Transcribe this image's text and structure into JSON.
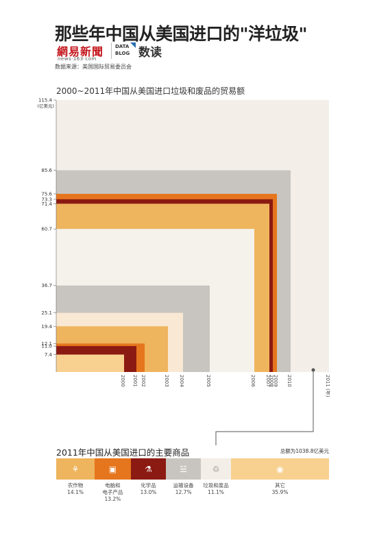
{
  "title": "那些年中国从美国进口的\"洋垃圾\"",
  "logos": {
    "news_name": "網易新聞",
    "news_url": "news·163·com",
    "blog_line1": "DATA",
    "blog_line2": "BLOG",
    "blog_name": "数读"
  },
  "source": "数据来源：美国国际贸易委员会",
  "chart_data": {
    "type": "area",
    "title": "2000~2011年中国从美国进口垃圾和废品的贸易额",
    "ylabel": "(亿美元)",
    "ytick_labels": [
      "115.4",
      "85.6",
      "75.6",
      "73.3",
      "71.4",
      "60.7",
      "36.7",
      "25.1",
      "19.4",
      "12.1",
      "11.0",
      "7.4"
    ],
    "x": [
      "2000",
      "2001",
      "2002",
      "2003",
      "2004",
      "2005",
      "2006",
      "2007",
      "2008",
      "2009",
      "2010",
      "2011 (年)"
    ],
    "values": [
      7.4,
      11.0,
      12.1,
      19.4,
      25.1,
      36.7,
      60.7,
      71.4,
      73.3,
      75.6,
      85.6,
      115.4
    ],
    "ylim": [
      0,
      115.4
    ],
    "grid": false,
    "colors": {
      "background": "#f3efe8",
      "yellow_light": "#f8d090",
      "red_dark": "#8b1a12",
      "orange": "#e6761e",
      "gold": "#eeb55e",
      "cream": "#f9e8d3",
      "gray": "#c8c5c0",
      "white": "#f5f2ec"
    }
  },
  "breakdown": {
    "title": "2011年中国从美国进口的主要商品",
    "total": "总额为1038.8亿美元",
    "categories": [
      {
        "name": "农作物",
        "pct": "14.1%",
        "value": 14.1,
        "color": "#eeb55e",
        "icon": "plant-icon"
      },
      {
        "name": "电脑和\n电子产品",
        "name1": "电脑和",
        "name2": "电子产品",
        "pct": "13.2%",
        "value": 13.2,
        "color": "#e6761e",
        "icon": "computer-icon"
      },
      {
        "name": "化学品",
        "pct": "13.0%",
        "value": 13.0,
        "color": "#8b1a12",
        "icon": "flask-icon"
      },
      {
        "name": "运输设备",
        "pct": "12.7%",
        "value": 12.7,
        "color": "#c8c5c0",
        "icon": "cart-icon"
      },
      {
        "name": "垃圾和废品",
        "pct": "11.1%",
        "value": 11.1,
        "color": "#f3efe8",
        "icon": "trash-icon"
      },
      {
        "name": "其它",
        "pct": "35.9%",
        "value": 35.9,
        "color": "#f8d090",
        "icon": "coin-icon"
      }
    ]
  }
}
